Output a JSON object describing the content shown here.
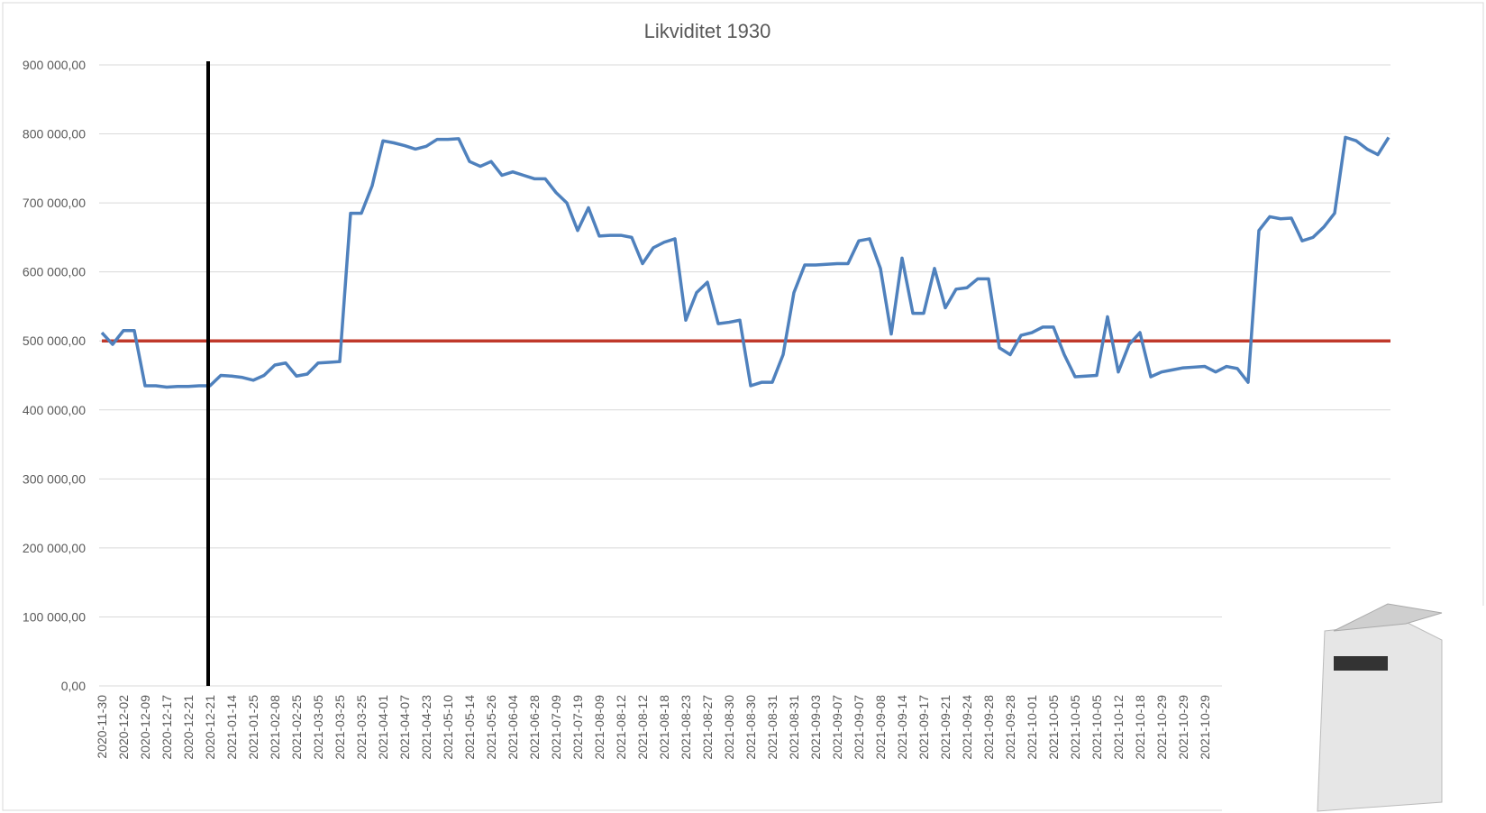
{
  "chart_data": {
    "type": "line",
    "title": "Likviditet 1930",
    "categories": [
      "2020-11-30",
      null,
      "2020-12-02",
      null,
      "2020-12-09",
      null,
      "2020-12-17",
      null,
      "2020-12-21",
      null,
      "2020-12-21",
      null,
      "2021-01-14",
      null,
      "2021-01-25",
      null,
      "2021-02-08",
      null,
      "2021-02-25",
      null,
      "2021-03-05",
      null,
      "2021-03-25",
      null,
      "2021-03-25",
      null,
      "2021-04-01",
      null,
      "2021-04-07",
      null,
      "2021-04-23",
      null,
      "2021-05-10",
      null,
      "2021-05-14",
      null,
      "2021-05-26",
      null,
      "2021-06-04",
      null,
      "2021-06-28",
      null,
      "2021-07-09",
      null,
      "2021-07-19",
      null,
      "2021-08-09",
      null,
      "2021-08-12",
      null,
      "2021-08-12",
      null,
      "2021-08-18",
      null,
      "2021-08-23",
      null,
      "2021-08-27",
      null,
      "2021-08-30",
      null,
      "2021-08-30",
      null,
      "2021-08-31",
      null,
      "2021-08-31",
      null,
      "2021-09-03",
      null,
      "2021-09-07",
      null,
      "2021-09-07",
      null,
      "2021-09-08",
      null,
      "2021-09-14",
      null,
      "2021-09-17",
      null,
      "2021-09-21",
      null,
      "2021-09-24",
      null,
      "2021-09-28",
      null,
      "2021-09-28",
      null,
      "2021-10-01",
      null,
      "2021-10-05",
      null,
      "2021-10-05",
      null,
      "2021-10-05",
      null,
      "2021-10-12",
      null,
      "2021-10-18",
      null,
      "2021-10-29",
      null,
      "2021-10-29",
      null,
      "2021-10-29",
      null,
      null,
      null,
      null,
      null,
      null,
      null,
      null,
      null,
      null,
      null,
      null,
      null,
      null,
      null,
      null,
      null
    ],
    "series": [
      {
        "color": "#4f81bd",
        "values": [
          512000,
          495000,
          515000,
          515000,
          435000,
          435000,
          433000,
          434000,
          434000,
          435000,
          435000,
          450000,
          449000,
          447000,
          443000,
          450000,
          465000,
          468000,
          449000,
          452000,
          468000,
          469000,
          470000,
          685000,
          685000,
          725000,
          790000,
          787000,
          783000,
          778000,
          782000,
          792000,
          792000,
          793000,
          760000,
          753000,
          760000,
          740000,
          745000,
          740000,
          735000,
          735000,
          715000,
          700000,
          660000,
          693000,
          652000,
          653000,
          653000,
          650000,
          612000,
          635000,
          643000,
          648000,
          530000,
          570000,
          585000,
          525000,
          527000,
          530000,
          435000,
          440000,
          440000,
          480000,
          570000,
          610000,
          610000,
          611000,
          612000,
          612000,
          645000,
          648000,
          605000,
          510000,
          620000,
          540000,
          540000,
          605000,
          548000,
          575000,
          577000,
          590000,
          590000,
          490000,
          480000,
          508000,
          512000,
          520000,
          520000,
          480000,
          448000,
          449000,
          450000,
          535000,
          455000,
          495000,
          512000,
          448000,
          455000,
          458000,
          461000,
          462000,
          463000,
          455000,
          463000,
          460000,
          440000,
          660000,
          680000,
          677000,
          678000,
          645000,
          650000,
          665000,
          685000,
          795000,
          790000,
          778000,
          770000,
          795000
        ]
      }
    ],
    "reference_lines": [
      {
        "value": 500000,
        "color": "#c0392b"
      }
    ],
    "ylim": [
      0,
      900000
    ],
    "yticks": [
      {
        "value": 0,
        "label": "0,00"
      },
      {
        "value": 100000,
        "label": "100 000,00"
      },
      {
        "value": 200000,
        "label": "200 000,00"
      },
      {
        "value": 300000,
        "label": "300 000,00"
      },
      {
        "value": 400000,
        "label": "400 000,00"
      },
      {
        "value": 500000,
        "label": "500 000,00"
      },
      {
        "value": 600000,
        "label": "600 000,00"
      },
      {
        "value": 700000,
        "label": "700 000,00"
      },
      {
        "value": 800000,
        "label": "800 000,00"
      },
      {
        "value": 900000,
        "label": "900 000,00"
      }
    ],
    "grid": true
  }
}
